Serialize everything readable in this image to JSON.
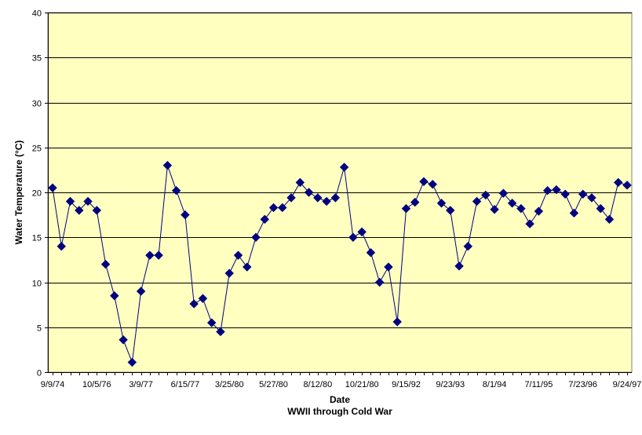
{
  "chart_data": {
    "type": "line",
    "title": "",
    "xlabel": "Date",
    "xlabel_sub": "WWII through Cold War",
    "ylabel": "Water Temperature (°C)",
    "ylim": [
      0,
      40
    ],
    "yticks": [
      0,
      5,
      10,
      15,
      20,
      25,
      30,
      35,
      40
    ],
    "grid": true,
    "legend": "none",
    "colors": {
      "plot_background": "#ffffc0",
      "series": "#000080",
      "gridline": "#000000"
    },
    "marker": "diamond",
    "x_tick_labels": [
      {
        "index": 0,
        "label": "9/9/74"
      },
      {
        "index": 5,
        "label": "10/5/76"
      },
      {
        "index": 10,
        "label": "3/9/77"
      },
      {
        "index": 15,
        "label": "6/15/77"
      },
      {
        "index": 20,
        "label": "3/25/80"
      },
      {
        "index": 25,
        "label": "5/27/80"
      },
      {
        "index": 30,
        "label": "8/12/80"
      },
      {
        "index": 35,
        "label": "10/21/80"
      },
      {
        "index": 40,
        "label": "9/15/92"
      },
      {
        "index": 45,
        "label": "9/23/93"
      },
      {
        "index": 50,
        "label": "8/1/94"
      },
      {
        "index": 55,
        "label": "7/11/95"
      },
      {
        "index": 60,
        "label": "7/23/96"
      },
      {
        "index": 65,
        "label": "9/24/97"
      }
    ],
    "series": [
      {
        "values": [
          20.5,
          14.0,
          19.0,
          18.0,
          19.0,
          18.0,
          12.0,
          8.5,
          3.6,
          1.1,
          9.0,
          13.0,
          13.0,
          23.0,
          20.2,
          17.5,
          7.6,
          8.2,
          5.5,
          4.5,
          11.0,
          13.0,
          11.7,
          15.0,
          17.0,
          18.3,
          18.3,
          19.4,
          21.1,
          20.0,
          19.4,
          19.0,
          19.4,
          22.8,
          15.0,
          15.6,
          13.3,
          10.0,
          11.7,
          5.6,
          18.2,
          18.9,
          21.2,
          20.9,
          18.8,
          18.0,
          11.8,
          14.0,
          19.0,
          19.7,
          18.1,
          19.9,
          18.8,
          18.2,
          16.5,
          17.9,
          20.2,
          20.3,
          19.8,
          17.7,
          19.8,
          19.4,
          18.2,
          17.0,
          21.1,
          20.8
        ]
      }
    ]
  }
}
